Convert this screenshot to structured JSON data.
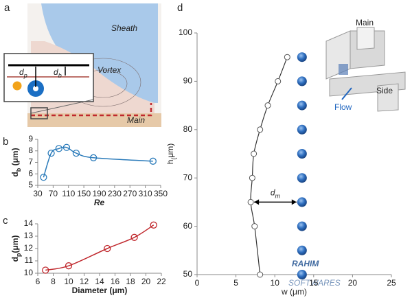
{
  "panel_labels": [
    "a",
    "b",
    "c",
    "d"
  ],
  "schematic": {
    "regions": [
      "Sheath",
      "Vortex",
      "Main"
    ],
    "inset_labels": [
      "dp",
      "db"
    ]
  },
  "chart_data": [
    {
      "type": "scatter",
      "x": [
        45,
        65,
        85,
        105,
        130,
        175,
        330
      ],
      "values": [
        5.7,
        7.8,
        8.2,
        8.3,
        7.8,
        7.4,
        7.1
      ],
      "color": "#2b7bba",
      "xlim": [
        30,
        350
      ],
      "xticks": [
        30,
        70,
        110,
        150,
        190,
        230,
        270,
        310,
        350
      ],
      "ylim": [
        5,
        9
      ],
      "yticks": [
        5,
        6,
        7,
        8,
        9
      ],
      "xlabel": "Re",
      "ylabel": "db (μm)",
      "fit_line": true
    },
    {
      "type": "scatter",
      "x": [
        7,
        10,
        15,
        18.5,
        21
      ],
      "values": [
        10.25,
        10.6,
        12.0,
        12.9,
        13.9
      ],
      "color": "#c0282d",
      "xlim": [
        6,
        22
      ],
      "xticks": [
        6,
        8,
        10,
        12,
        14,
        16,
        18,
        20,
        22
      ],
      "ylim": [
        10,
        14
      ],
      "yticks": [
        10,
        11,
        12,
        13,
        14
      ],
      "xlabel": "Diameter (μm)",
      "ylabel": "dp(μm)",
      "fit_line": true
    },
    {
      "type": "trajectory",
      "series": [
        {
          "color": "#555555",
          "x": [
            11.6,
            10.4,
            9.1,
            8.1,
            7.3,
            7.1,
            6.9,
            7.4,
            8.1
          ],
          "values": [
            95,
            90,
            85,
            80,
            75,
            70,
            65,
            60,
            50
          ]
        },
        {
          "color": "#2f6fc0",
          "x": [
            13.5,
            13.5,
            13.5,
            13.5,
            13.5,
            13.5,
            13.5,
            13.5,
            13.5,
            13.5
          ],
          "values": [
            95,
            90,
            85,
            80,
            75,
            70,
            65,
            60,
            55,
            50
          ]
        }
      ],
      "xlim": [
        0,
        25
      ],
      "xticks": [
        0,
        5,
        10,
        15,
        20,
        25
      ],
      "ylim": [
        50,
        100
      ],
      "yticks": [
        50,
        60,
        70,
        80,
        90,
        100
      ],
      "xlabel": "w (μm)",
      "ylabel": "h(μm)",
      "annotation": "dm",
      "inset_labels": [
        "Main",
        "Side",
        "Flow"
      ]
    }
  ],
  "watermark": [
    "RAHIM",
    "SOFTWARES"
  ]
}
